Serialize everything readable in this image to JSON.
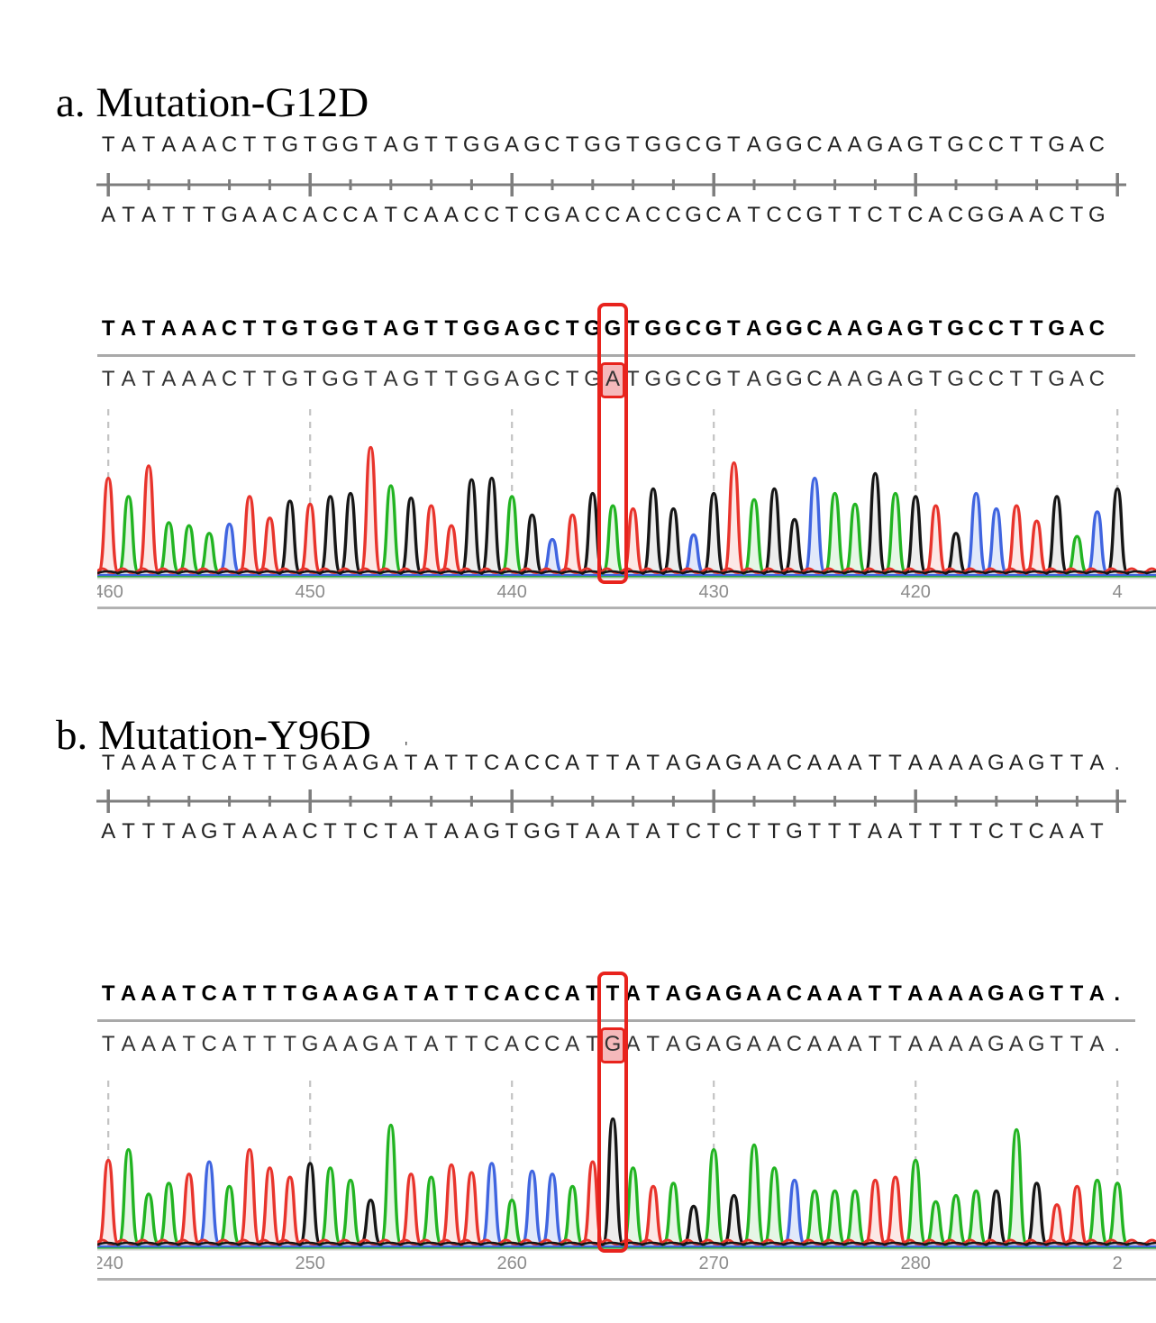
{
  "figure_type": "sanger-sequencing-mutation-figure",
  "colors": {
    "trace": {
      "A": "#22b422",
      "C": "#4065e0",
      "G": "#161616",
      "T": "#e8342c"
    },
    "fill": {
      "A": "#e6f6e6",
      "C": "#e2e9fa",
      "G": "#ededed",
      "T": "#fce8e6"
    },
    "mutation_box": "#e8231d",
    "mutation_highlight": "#f5b9bb",
    "gridline": "#c3c3c3",
    "axis_text": "#8c8c8c",
    "ruler": "#7d7d7d"
  },
  "panels": [
    {
      "id": "a",
      "title": "a. Mutation-G12D",
      "ds_view": {
        "top_strand": "TATAAACTTGTGGTAGTTGGAGCTGGTGGCGTAGGCAAGAGTGCCTTGAC",
        "bottom_strand": "ATATTTGAACACCATCAACCTCGACCACCGCATCCGTTCTCACGGAACTG",
        "ruler": {
          "minor_every": 2,
          "major_every": 10
        }
      },
      "alignment": {
        "reference": "TATAAACTTGTGGTAGTTGGAGCTGGTGGCGTAGGCAAGAGTGCCTTGAC",
        "sample": "TATAAACTTGTGGTAGTTGGAGCTGATGGCGTAGGCAAGAGTGCCTTGAC",
        "mutation_index": 25,
        "ref_base": "G",
        "alt_base": "A"
      }
    },
    {
      "id": "b",
      "title": "b. Mutation-Y96D",
      "ds_view": {
        "top_strand": "TAAATCATTTGAAGATATTCACCATTATAGAGAACAAATTAAAAGAGTTA.",
        "bottom_strand": "ATTTAGTAAACTTCTATAAGTGGTAATATCTCTTGTTTAATTTTCTCAAT",
        "artifact_mark": "'",
        "ruler": {
          "minor_every": 2,
          "major_every": 10
        }
      },
      "alignment": {
        "reference": "TAAATCATTTGAAGATATTCACCATTATAGAGAACAAATTAAAAGAGTTA.",
        "sample": "TAAATCATTTGAAGATATTCACCATGATAGAGAACAAATTAAAAGAGTTA.",
        "mutation_index": 25,
        "ref_base": "T",
        "alt_base": "G"
      }
    }
  ],
  "chart_data": [
    {
      "type": "area",
      "title": "Sanger chromatogram trace - Mutation-G12D",
      "legend": {
        "A": "green",
        "C": "blue",
        "G": "black",
        "T": "red"
      },
      "x_axis_direction": "decreasing",
      "sequence": "TATAAACTTGTGGTAGTTGGAGCTGATGGCGTAGGCAAGAGTGCCTTGACG",
      "peak_heights_pct": [
        62,
        50,
        70,
        33,
        31,
        26,
        32,
        50,
        36,
        47,
        45,
        50,
        52,
        82,
        57,
        49,
        44,
        31,
        61,
        62,
        50,
        38,
        22,
        38,
        52,
        44,
        42,
        55,
        42,
        25,
        52,
        72,
        48,
        55,
        35,
        62,
        52,
        45,
        65,
        52,
        50,
        44,
        26,
        52,
        42,
        44,
        34,
        50,
        24,
        40,
        55
      ],
      "boxed_base_index": 25,
      "x_ticks": [
        {
          "label": "460",
          "base": 1,
          "clipped_left": true
        },
        {
          "label": "450",
          "base": 11
        },
        {
          "label": "440",
          "base": 21
        },
        {
          "label": "430",
          "base": 31
        },
        {
          "label": "420",
          "base": 41
        },
        {
          "label": "4",
          "base": 51,
          "clipped_right": true
        }
      ],
      "grid": "dashed-vertical-every-10-bases"
    },
    {
      "type": "area",
      "title": "Sanger chromatogram trace - Mutation-Y96D",
      "legend": {
        "A": "green",
        "C": "blue",
        "G": "black",
        "T": "red"
      },
      "x_axis_direction": "increasing",
      "sequence": "TAAATCATTTGAAGATATTCACCATGATAGAGAACAAATTAAAAGAGTTAA",
      "peak_heights_pct": [
        55,
        62,
        33,
        40,
        46,
        54,
        38,
        62,
        50,
        44,
        53,
        50,
        42,
        29,
        78,
        46,
        44,
        52,
        47,
        53,
        29,
        48,
        46,
        38,
        54,
        82,
        50,
        38,
        40,
        25,
        62,
        32,
        65,
        50,
        42,
        35,
        35,
        35,
        42,
        44,
        55,
        28,
        32,
        35,
        35,
        75,
        40,
        26,
        38,
        42,
        40
      ],
      "boxed_base_index": 25,
      "x_ticks": [
        {
          "label": "240",
          "base": 1,
          "clipped_left": true
        },
        {
          "label": "250",
          "base": 11
        },
        {
          "label": "260",
          "base": 21
        },
        {
          "label": "270",
          "base": 31
        },
        {
          "label": "280",
          "base": 41
        },
        {
          "label": "2",
          "base": 51,
          "clipped_right": true
        }
      ],
      "grid": "dashed-vertical-every-10-bases"
    }
  ]
}
